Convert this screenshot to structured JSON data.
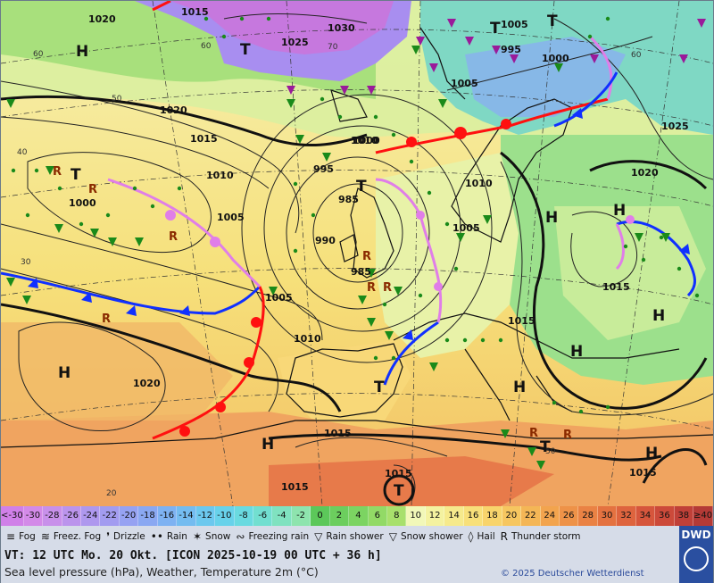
{
  "map": {
    "isobar_labels": [
      "1020",
      "1015",
      "1030",
      "1025",
      "1020",
      "1015",
      "1010",
      "1005",
      "1000",
      "995",
      "990",
      "985",
      "1005",
      "1010",
      "1020",
      "1015",
      "1005",
      "1000",
      "1025",
      "1020",
      "1010",
      "1005",
      "1015",
      "1015",
      "1015",
      "1015",
      "1015",
      "1010",
      "1005",
      "1000",
      "995",
      "985"
    ],
    "pressure_highs": [
      "H",
      "H",
      "H",
      "H",
      "H",
      "H",
      "H",
      "H",
      "H"
    ],
    "pressure_lows": [
      "T",
      "T",
      "T",
      "T",
      "T",
      "T",
      "T",
      "T"
    ],
    "latitude_labels": [
      "60",
      "50",
      "40",
      "30",
      "20",
      "60",
      "70",
      "60",
      "50"
    ],
    "thunder_symbol": "R"
  },
  "scale": {
    "cells": [
      "<-30",
      "-30",
      "-28",
      "-26",
      "-24",
      "-22",
      "-20",
      "-18",
      "-16",
      "-14",
      "-12",
      "-10",
      "-8",
      "-6",
      "-4",
      "-2",
      "0",
      "2",
      "4",
      "6",
      "8",
      "10",
      "12",
      "14",
      "16",
      "18",
      "20",
      "22",
      "24",
      "26",
      "28",
      "30",
      "32",
      "34",
      "36",
      "38",
      "≥40 °C"
    ],
    "colors": [
      "#d080e8",
      "#d38ae8",
      "#c890ea",
      "#bb94ec",
      "#ae98ee",
      "#a29cf0",
      "#96a2f2",
      "#8aa8f2",
      "#7eb2f2",
      "#74bcf0",
      "#6cc8ee",
      "#68d2ea",
      "#6adae0",
      "#72dfd0",
      "#80e2c0",
      "#8ee4ae",
      "#5cc85a",
      "#6cce5e",
      "#7cd462",
      "#92da66",
      "#a8e06c",
      "#f2f8b8",
      "#f4f2a0",
      "#f6ea8c",
      "#f8e07a",
      "#f8d46c",
      "#f6c660",
      "#f4b656",
      "#f2a44e",
      "#ee9248",
      "#ea8244",
      "#e47240",
      "#de643e",
      "#d6563c",
      "#cc4a3a",
      "#c04038",
      "#b43a36"
    ]
  },
  "legend": {
    "items": [
      {
        "icon": "fog-icon",
        "symbol": "≡",
        "label": "Fog"
      },
      {
        "icon": "freezing-fog-icon",
        "symbol": "≋",
        "label": "Freez. Fog"
      },
      {
        "icon": "drizzle-icon",
        "symbol": "❜",
        "label": "Drizzle"
      },
      {
        "icon": "rain-icon",
        "symbol": "••",
        "label": "Rain"
      },
      {
        "icon": "snow-icon",
        "symbol": "✶",
        "label": "Snow"
      },
      {
        "icon": "freezing-rain-icon",
        "symbol": "∾",
        "label": "Freezing rain"
      },
      {
        "icon": "rain-shower-icon",
        "symbol": "▽",
        "label": "Rain shower"
      },
      {
        "icon": "snow-shower-icon",
        "symbol": "▽",
        "label": "Snow shower"
      },
      {
        "icon": "hail-icon",
        "symbol": "◊",
        "label": "Hail"
      },
      {
        "icon": "thunderstorm-icon",
        "symbol": "R",
        "label": "Thunder storm"
      }
    ]
  },
  "info": {
    "valid_time": "VT: 12 UTC Mo.  20 Okt. [ICON 2025-10-19  00 UTC + 36 h]",
    "description": "Sea level pressure (hPa), Weather, Temperature 2m (°C)",
    "copyright": "© 2025 Deutscher Wetterdienst",
    "logo_text": "DWD"
  },
  "colors": {
    "warm_front": "#ff1010",
    "cold_front": "#1030ff",
    "occlusion": "#e07ee8",
    "rain_green": "#1a8a1a",
    "snow_purple": "#9a1a9a"
  }
}
